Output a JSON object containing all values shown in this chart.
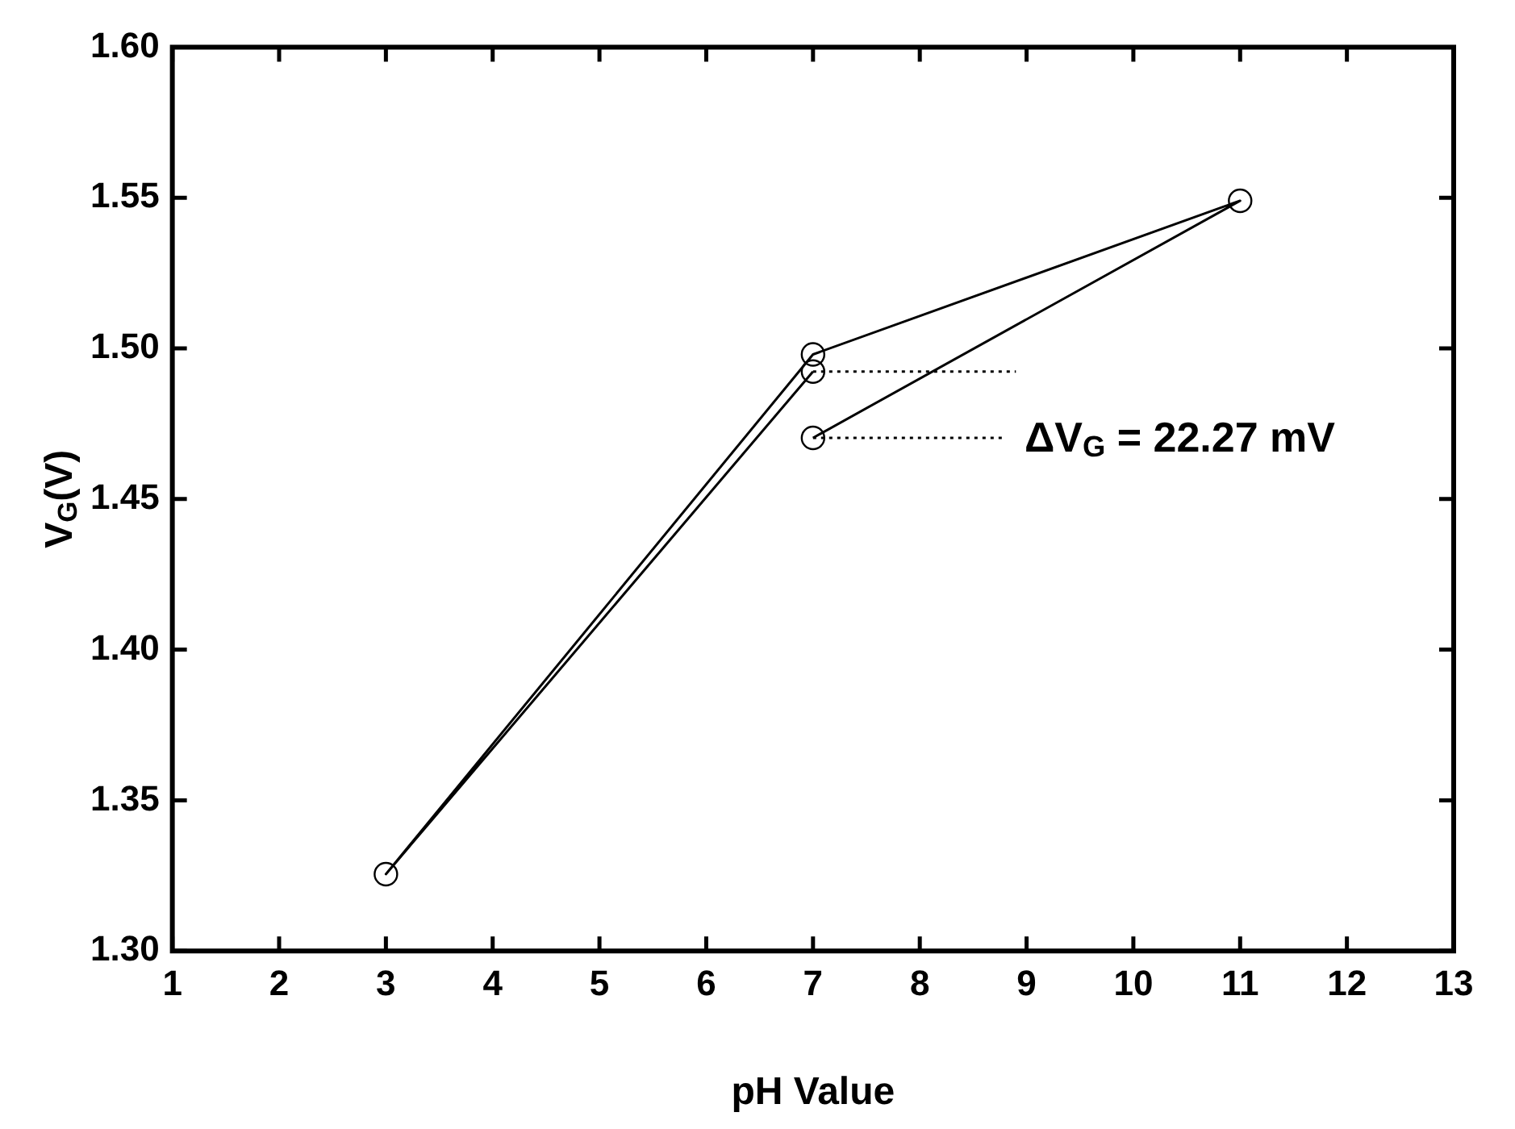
{
  "chart_data": {
    "type": "line",
    "xlabel": "pH Value",
    "ylabel": "V$_{G}$(V)",
    "xlim": [
      1,
      13
    ],
    "xticks": [
      1,
      2,
      3,
      4,
      5,
      6,
      7,
      8,
      9,
      10,
      11,
      12,
      13
    ],
    "ylim": [
      1.3,
      1.6
    ],
    "yticks": [
      {
        "value": 1.3,
        "label": "1.30"
      },
      {
        "value": 1.35,
        "label": "1.35"
      },
      {
        "value": 1.4,
        "label": "1.40"
      },
      {
        "value": 1.45,
        "label": "1.45"
      },
      {
        "value": 1.5,
        "label": "1.50"
      },
      {
        "value": 1.55,
        "label": "1.55"
      },
      {
        "value": 1.6,
        "label": "1.60"
      }
    ],
    "grid": false,
    "legend": false,
    "marker": "circle",
    "line_style": "solid",
    "series": [
      {
        "color": "#000000",
        "x": [
          7,
          11,
          7,
          3,
          7
        ],
        "values": [
          1.4703,
          1.549,
          1.498,
          1.3255,
          1.4923
        ]
      },
      {
        "color": "#000000",
        "x": [
          7,
          8.9
        ],
        "values": [
          1.4923,
          1.4923
        ],
        "marker": "none",
        "line_style": "dotted"
      },
      {
        "color": "#000000",
        "x": [
          7,
          8.8
        ],
        "values": [
          1.4703,
          1.4703
        ],
        "marker": "none",
        "line_style": "dotted"
      }
    ],
    "annotations": [
      "ΔV$_{G}$ = 22.27 mV"
    ]
  }
}
